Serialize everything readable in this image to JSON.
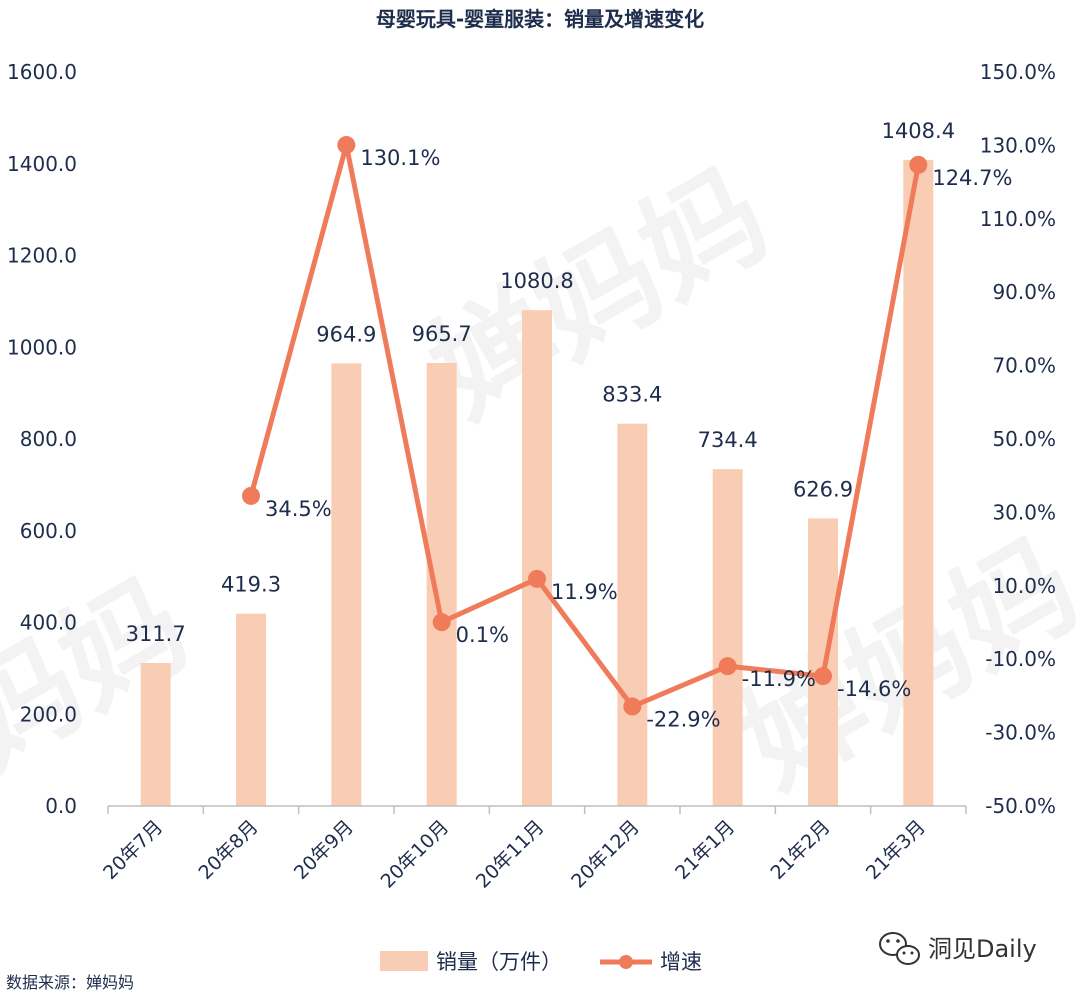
{
  "chart_data": {
    "type": "bar",
    "title": "母婴玩具-婴童服装：销量及增速变化",
    "categories": [
      "20年7月",
      "20年8月",
      "20年9月",
      "20年10月",
      "20年11月",
      "20年12月",
      "21年1月",
      "21年2月",
      "21年3月"
    ],
    "series": [
      {
        "name": "销量（万件）",
        "type": "bar",
        "axis": "left",
        "color": "#f9cdb3",
        "values": [
          311.7,
          419.3,
          964.9,
          965.7,
          1080.8,
          833.4,
          734.4,
          626.9,
          1408.4
        ],
        "labels": [
          "311.7",
          "419.3",
          "964.9",
          "965.7",
          "1080.8",
          "833.4",
          "734.4",
          "626.9",
          "1408.4"
        ]
      },
      {
        "name": "增速",
        "type": "line",
        "axis": "right",
        "color": "#f07b5a",
        "values": [
          null,
          34.5,
          130.1,
          0.1,
          11.9,
          -22.9,
          -11.9,
          -14.6,
          124.7
        ],
        "labels": [
          "",
          "34.5%",
          "130.1%",
          "0.1%",
          "11.9%",
          "-22.9%",
          "-11.9%",
          "-14.6%",
          "124.7%"
        ]
      }
    ],
    "y_left": {
      "min": 0,
      "max": 1600,
      "step": 200,
      "ticks": [
        "0.0",
        "200.0",
        "400.0",
        "600.0",
        "800.0",
        "1000.0",
        "1200.0",
        "1400.0",
        "1600.0"
      ]
    },
    "y_right": {
      "min": -50,
      "max": 150,
      "step": 20,
      "ticks": [
        "-50.0%",
        "-30.0%",
        "-10.0%",
        "10.0%",
        "30.0%",
        "50.0%",
        "70.0%",
        "90.0%",
        "110.0%",
        "130.0%",
        "150.0%"
      ]
    },
    "grid": false,
    "legend": {
      "position": "bottom",
      "items": [
        "销量（万件）",
        "增速"
      ]
    }
  },
  "footer": {
    "source": "数据来源：婵妈妈",
    "brand": "洞见Daily",
    "watermark": "婵妈妈"
  }
}
